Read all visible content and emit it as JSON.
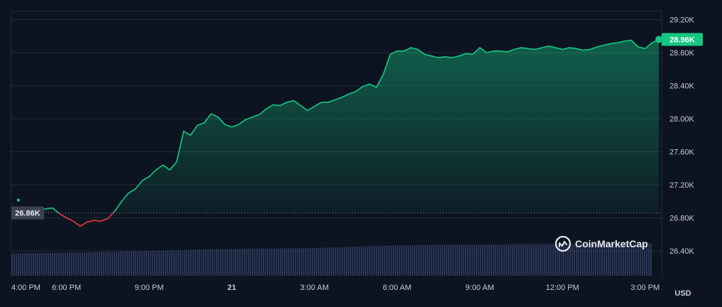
{
  "chart_data": {
    "type": "area",
    "currency_label": "USD",
    "ylim": [
      26100,
      29300
    ],
    "y_ticks": [
      {
        "value": 29200,
        "label": "29.20K"
      },
      {
        "value": 28800,
        "label": "28.80K"
      },
      {
        "value": 28400,
        "label": "28.40K"
      },
      {
        "value": 28000,
        "label": "28.00K"
      },
      {
        "value": 27600,
        "label": "27.60K"
      },
      {
        "value": 27200,
        "label": "27.20K"
      },
      {
        "value": 26800,
        "label": "26.80K"
      },
      {
        "value": 26400,
        "label": "26.40K"
      }
    ],
    "x_range_hours": [
      16,
      39.6
    ],
    "x_ticks": [
      {
        "hour": 16,
        "label": "4:00 PM"
      },
      {
        "hour": 18,
        "label": "6:00 PM"
      },
      {
        "hour": 21,
        "label": "9:00 PM"
      },
      {
        "hour": 24,
        "label": "21"
      },
      {
        "hour": 27,
        "label": "3:00 AM"
      },
      {
        "hour": 30,
        "label": "6:00 AM"
      },
      {
        "hour": 33,
        "label": "9:00 AM"
      },
      {
        "hour": 36,
        "label": "12:00 PM"
      },
      {
        "hour": 39,
        "label": "3:00 PM"
      }
    ],
    "reference": {
      "value": 26860,
      "label": "26.86K"
    },
    "current": {
      "value": 28960,
      "label": "28.96K"
    },
    "colors": {
      "up": "#16c784",
      "down": "#ea3943",
      "background": "#0d1421",
      "grid": "#222a38",
      "volume": "#2b3557"
    },
    "price_series": [
      [
        16.0,
        26930
      ],
      [
        16.25,
        26880
      ],
      [
        16.5,
        26900
      ],
      [
        16.75,
        26880
      ],
      [
        17.0,
        26890
      ],
      [
        17.25,
        26910
      ],
      [
        17.5,
        26920
      ],
      [
        17.75,
        26850
      ],
      [
        18.0,
        26800
      ],
      [
        18.25,
        26760
      ],
      [
        18.5,
        26700
      ],
      [
        18.75,
        26750
      ],
      [
        19.0,
        26770
      ],
      [
        19.25,
        26760
      ],
      [
        19.5,
        26790
      ],
      [
        19.75,
        26880
      ],
      [
        20.0,
        27000
      ],
      [
        20.25,
        27100
      ],
      [
        20.5,
        27150
      ],
      [
        20.75,
        27250
      ],
      [
        21.0,
        27300
      ],
      [
        21.25,
        27380
      ],
      [
        21.5,
        27440
      ],
      [
        21.75,
        27380
      ],
      [
        22.0,
        27480
      ],
      [
        22.25,
        27850
      ],
      [
        22.5,
        27800
      ],
      [
        22.75,
        27920
      ],
      [
        23.0,
        27950
      ],
      [
        23.25,
        28060
      ],
      [
        23.5,
        28020
      ],
      [
        23.75,
        27930
      ],
      [
        24.0,
        27900
      ],
      [
        24.25,
        27930
      ],
      [
        24.5,
        27990
      ],
      [
        24.75,
        28020
      ],
      [
        25.0,
        28050
      ],
      [
        25.25,
        28120
      ],
      [
        25.5,
        28170
      ],
      [
        25.75,
        28160
      ],
      [
        26.0,
        28200
      ],
      [
        26.25,
        28220
      ],
      [
        26.5,
        28160
      ],
      [
        26.75,
        28100
      ],
      [
        27.0,
        28150
      ],
      [
        27.25,
        28200
      ],
      [
        27.5,
        28200
      ],
      [
        27.75,
        28230
      ],
      [
        28.0,
        28260
      ],
      [
        28.25,
        28300
      ],
      [
        28.5,
        28330
      ],
      [
        28.75,
        28390
      ],
      [
        29.0,
        28420
      ],
      [
        29.25,
        28380
      ],
      [
        29.5,
        28540
      ],
      [
        29.75,
        28780
      ],
      [
        30.0,
        28820
      ],
      [
        30.25,
        28820
      ],
      [
        30.5,
        28860
      ],
      [
        30.75,
        28840
      ],
      [
        31.0,
        28780
      ],
      [
        31.25,
        28760
      ],
      [
        31.5,
        28740
      ],
      [
        31.75,
        28750
      ],
      [
        32.0,
        28740
      ],
      [
        32.25,
        28760
      ],
      [
        32.5,
        28790
      ],
      [
        32.75,
        28780
      ],
      [
        33.0,
        28860
      ],
      [
        33.25,
        28800
      ],
      [
        33.5,
        28820
      ],
      [
        33.75,
        28820
      ],
      [
        34.0,
        28810
      ],
      [
        34.25,
        28840
      ],
      [
        34.5,
        28860
      ],
      [
        34.75,
        28850
      ],
      [
        35.0,
        28840
      ],
      [
        35.25,
        28860
      ],
      [
        35.5,
        28880
      ],
      [
        35.75,
        28860
      ],
      [
        36.0,
        28840
      ],
      [
        36.25,
        28860
      ],
      [
        36.5,
        28850
      ],
      [
        36.75,
        28830
      ],
      [
        37.0,
        28840
      ],
      [
        37.25,
        28870
      ],
      [
        37.5,
        28890
      ],
      [
        37.75,
        28910
      ],
      [
        38.0,
        28920
      ],
      [
        38.25,
        28940
      ],
      [
        38.5,
        28950
      ],
      [
        38.75,
        28870
      ],
      [
        39.0,
        28850
      ],
      [
        39.25,
        28920
      ],
      [
        39.5,
        28960
      ]
    ],
    "volume_series": [
      [
        16.0,
        0.62
      ],
      [
        17.0,
        0.63
      ],
      [
        18.0,
        0.64
      ],
      [
        19.0,
        0.65
      ],
      [
        20.0,
        0.67
      ],
      [
        21.0,
        0.69
      ],
      [
        22.0,
        0.71
      ],
      [
        23.0,
        0.73
      ],
      [
        24.0,
        0.74
      ],
      [
        25.0,
        0.75
      ],
      [
        26.0,
        0.76
      ],
      [
        27.0,
        0.77
      ],
      [
        28.0,
        0.79
      ],
      [
        29.0,
        0.82
      ],
      [
        30.0,
        0.84
      ],
      [
        31.0,
        0.85
      ],
      [
        32.0,
        0.86
      ],
      [
        33.0,
        0.86
      ],
      [
        34.0,
        0.87
      ],
      [
        35.0,
        0.88
      ],
      [
        36.0,
        0.88
      ],
      [
        37.0,
        0.89
      ],
      [
        38.0,
        0.9
      ],
      [
        39.0,
        0.9
      ],
      [
        39.6,
        0.9
      ]
    ]
  },
  "branding": {
    "name": "CoinMarketCap"
  }
}
